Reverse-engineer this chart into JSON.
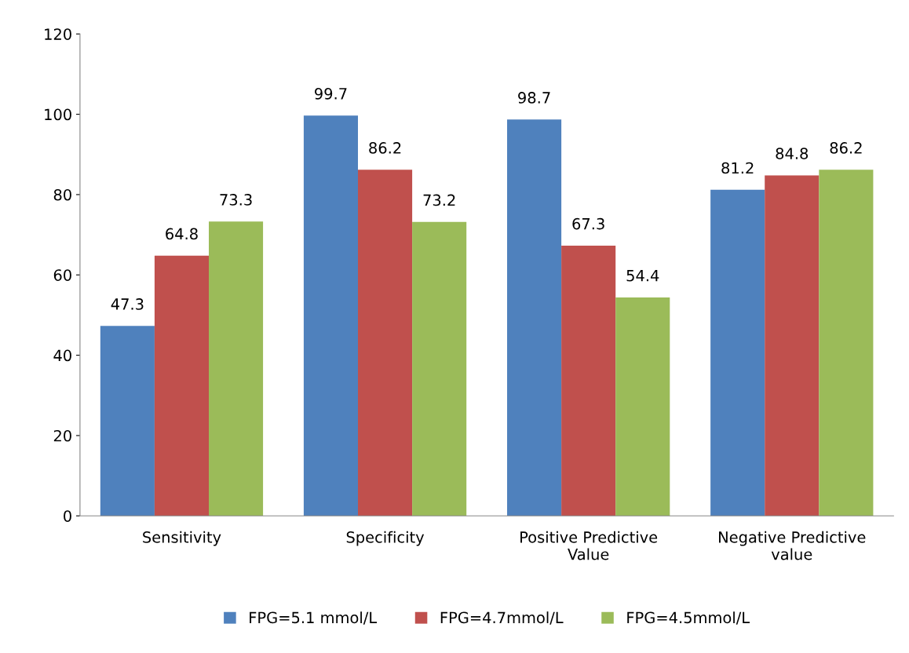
{
  "chart_data": {
    "type": "bar",
    "categories": [
      "Sensitivity",
      "Specificity",
      "Positive Predictive\nValue",
      "Negative Predictive\nvalue"
    ],
    "series": [
      {
        "name": "FPG=5.1 mmol/L",
        "color": "#4f81bd",
        "values": [
          47.3,
          99.7,
          98.7,
          81.2
        ]
      },
      {
        "name": "FPG=4.7mmol/L",
        "color": "#c0504d",
        "values": [
          64.8,
          86.2,
          67.3,
          84.8
        ]
      },
      {
        "name": "FPG=4.5mmol/L",
        "color": "#9bbb59",
        "values": [
          73.3,
          73.2,
          54.4,
          86.2
        ]
      }
    ],
    "ylim": [
      0,
      120
    ],
    "yticks": [
      0,
      20,
      40,
      60,
      80,
      100,
      120
    ],
    "data_labels": true,
    "legend": "bottom",
    "grid": false
  }
}
